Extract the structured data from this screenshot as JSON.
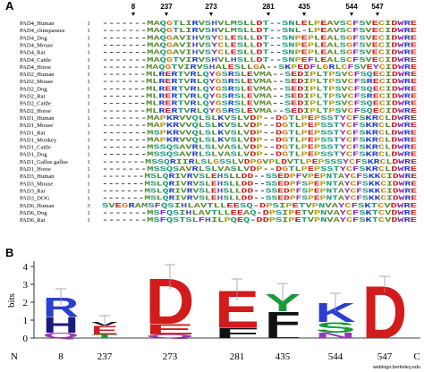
{
  "alignment": {
    "panel_label": "A",
    "markers": [
      8,
      237,
      273,
      281,
      435,
      544,
      547
    ],
    "residue_colors": {
      "D": "#d21c1c",
      "E": "#d21c1c",
      "K": "#1f3fd0",
      "R": "#1f3fd0",
      "H": "#5a5ac8",
      "S": "#1a9a7a",
      "T": "#1a9a7a",
      "N": "#1a9a7a",
      "Q": "#1a9a7a",
      "A": "#6a8a2a",
      "V": "#4a8a2a",
      "L": "#4a8a2a",
      "I": "#4a8a2a",
      "M": "#4a8a2a",
      "C": "#c08a10",
      "G": "#d87a10",
      "P": "#b0a010",
      "F": "#8a2ab0",
      "W": "#8a2ab0",
      "Y": "#8a2ab0",
      "-": "#333333"
    },
    "rows": [
      {
        "name": "PAD4_Human",
        "start": 1,
        "sequence": "-------MAQGTLIRVSHVLMSLLDT--SNLELPEAVSCFSVECIDWRE"
      },
      {
        "name": "PAD4_chimpanzee",
        "start": 1,
        "sequence": "-------MAQGTLIRVSHVLMSLLDT--SNL-LPEAVSCFSVECIDWRE"
      },
      {
        "name": "PAD4_Dog",
        "start": 1,
        "sequence": "-------MAQGAVIHVSYCLESLLDT--SNPEPLEALSGFSVECIDWRE"
      },
      {
        "name": "PAD4_Mouse",
        "start": 1,
        "sequence": "-------MAQGAVIHVSYCLESLLDT--SNPEPLEALSGFSVECIDWRE"
      },
      {
        "name": "PAD4_Rat",
        "start": 1,
        "sequence": "-------MAQGAVIHVSYCLESLLDT--SNPEPLEALSGFSVECIDWRE"
      },
      {
        "name": "PAD4_Cattle",
        "start": 1,
        "sequence": "-------MAQGTVIRVSHVLHSLLDT--SNPEFLEALSCFSVECIDWRE"
      },
      {
        "name": "PAD4_Horse",
        "start": 1,
        "sequence": "-------MAQGTVIRVSHALESLLGA--SKPEDFLGRLCFSVEYCIDWRE"
      },
      {
        "name": "PAD2_Human",
        "start": 1,
        "sequence": "-------MLRERTVRLQYGSRSLEVMA--SEDIPLTPSVCFSQECIDWRE"
      },
      {
        "name": "PAD2_Mouse",
        "start": 1,
        "sequence": "-------MLRERTVRLQYGSRSLEVMA--SEDIPLTPSVCFSRECIDWRE"
      },
      {
        "name": "PAD2_Dog",
        "start": 1,
        "sequence": "-------MLRERTVRLQYGSRSLEVMA--SEDIPLTPSVCFSQECIDWRE"
      },
      {
        "name": "PAD2_Rat",
        "start": 1,
        "sequence": "-------MLRERTVRLQYGSRSLEVMA--SEDIPLTPSVCFSRECIDWRE"
      },
      {
        "name": "PAD2_Cattle",
        "start": 1,
        "sequence": "-------MLRERTVRLQYGSRSLEVMA--SEDIPLTPSVCFSQECIDWRE"
      },
      {
        "name": "PAD2_Horse",
        "start": 1,
        "sequence": "-------MLRERTVRLQYGSRSLEVMA--SEDIPLTPSVCFSQECIDWRE"
      },
      {
        "name": "PAD1_Human",
        "start": 1,
        "sequence": "-------MAPKRVVQLSLKVSLVDP--DGTLPEPSSTYCFSKRCLDWRE"
      },
      {
        "name": "PAD1_Mouse",
        "start": 1,
        "sequence": "-------MAPKRVVQLSLKVSLVDP--DGTLPEPSSTYCFSKRCLDWRE"
      },
      {
        "name": "PAD1_Rat",
        "start": 1,
        "sequence": "-------MSPKRVVQLSLKVSLVDP--DGTLPEPSSTYCFSKRCLDWRE"
      },
      {
        "name": "PAD1_Monkey",
        "start": 1,
        "sequence": "-------MAPKRVVQLSLKVSLVDP--DGTLPEPSSTYCFSKRCLDWRE"
      },
      {
        "name": "PAD1_Cattle",
        "start": 1,
        "sequence": "-------MSSQSAVRLSLVASLVDP--DGTLPEPSSTYCFSKRCLDWRE"
      },
      {
        "name": "PAD1_Dog",
        "start": 1,
        "sequence": "-------MSSQSAVRLSLVASLVDP--DGTLPEPSSTYCFSKRCLDWRE"
      },
      {
        "name": "PAD1_Gallus gallus",
        "start": 1,
        "sequence": "-------MSSQRIIRLSLGSSLVDPGVPLDVTLPEPSSSYCFSKRCLDWRE"
      },
      {
        "name": "PAD1_Horse",
        "start": 1,
        "sequence": "-------MSSQSAVRLSLVASLVDP--DGTLPEPSSTYCFSKRCLDWRE"
      },
      {
        "name": "PAD3_Human",
        "start": 1,
        "sequence": "-------MSLQRIVRVSLEHSLLDD--SSEDPFVPEPNTAYCFSKKCIDWRE"
      },
      {
        "name": "PAD3_Mouse",
        "start": 1,
        "sequence": "-------MSLQRIVRVSLEHSLLDD--SSEDPFSPEPNTAYCFSKKCIDWRE"
      },
      {
        "name": "PAD3_Rat",
        "start": 1,
        "sequence": "-------MSLQRIVRVSLEHSLLDD--SSEDPFSPEPNTAYCFSKKCIDWRE"
      },
      {
        "name": "PAD3_DOG",
        "start": 1,
        "sequence": "-------MSLQRIVRVSLEHSLLDD--SSEDPFSPEPNTAYCFSKKCIDWRE"
      },
      {
        "name": "PAD6_Human",
        "start": 3,
        "sequence": "SVEGRAMSFQSIHLAVTLLEESQ-DPSIPETVPNVAYCFSKTCVDWRE"
      },
      {
        "name": "PAD6_Dog",
        "start": 1,
        "sequence": "-------MSFQSIHLAVTLLEEAQ-DPSIPETVPNVAYCFSKTCVDWRE"
      },
      {
        "name": "PAD6_Rat",
        "start": 1,
        "sequence": "-------MSFQSTSLFHILPQEQ-DDPSIPETVPNVAYCFSKTCVDWRE"
      }
    ]
  },
  "logo": {
    "panel_label": "B",
    "ylabel": "bits",
    "ylim": [
      0,
      4.3
    ],
    "yticks": [
      0,
      1,
      2,
      3,
      4
    ],
    "ends": [
      "N",
      "C"
    ],
    "watermark": "weblogo.berkeley.edu",
    "positions": [
      {
        "label": 8,
        "error": 0.45,
        "stack": [
          {
            "letter": "Q",
            "height": 0.3,
            "color": "#9a3ab0"
          },
          {
            "letter": "H",
            "height": 0.9,
            "color": "#1a1a80"
          },
          {
            "letter": "R",
            "height": 1.1,
            "color": "#2a3fd0"
          }
        ]
      },
      {
        "label": 237,
        "error": 0.35,
        "stack": [
          {
            "letter": "T",
            "height": 0.2,
            "color": "#1a9a3a"
          },
          {
            "letter": "E",
            "height": 0.5,
            "color": "#d21c1c"
          },
          {
            "letter": "V",
            "height": 0.2,
            "color": "#111111"
          }
        ]
      },
      {
        "label": 273,
        "error": 0.7,
        "stack": [
          {
            "letter": "Q",
            "height": 0.2,
            "color": "#9a3ab0"
          },
          {
            "letter": "E",
            "height": 0.6,
            "color": "#d21c1c"
          },
          {
            "letter": "D",
            "height": 2.6,
            "color": "#d21c1c"
          }
        ]
      },
      {
        "label": 281,
        "error": 0.6,
        "stack": [
          {
            "letter": "F",
            "height": 0.6,
            "color": "#111111"
          },
          {
            "letter": "E",
            "height": 2.1,
            "color": "#d21c1c"
          }
        ]
      },
      {
        "label": 435,
        "error": 0.55,
        "stack": [
          {
            "letter": "L",
            "height": 0.3,
            "color": "#111111"
          },
          {
            "letter": "F",
            "height": 1.2,
            "color": "#111111"
          },
          {
            "letter": "Y",
            "height": 1.0,
            "color": "#1a9a3a"
          }
        ]
      },
      {
        "label": 544,
        "error": 0.5,
        "stack": [
          {
            "letter": "N",
            "height": 0.3,
            "color": "#9a3ab0"
          },
          {
            "letter": "S",
            "height": 0.6,
            "color": "#1a9a3a"
          },
          {
            "letter": "K",
            "height": 1.1,
            "color": "#2a3fd0"
          }
        ]
      },
      {
        "label": 547,
        "error": 0.45,
        "stack": [
          {
            "letter": "D",
            "height": 3.0,
            "color": "#d21c1c"
          }
        ]
      }
    ]
  }
}
